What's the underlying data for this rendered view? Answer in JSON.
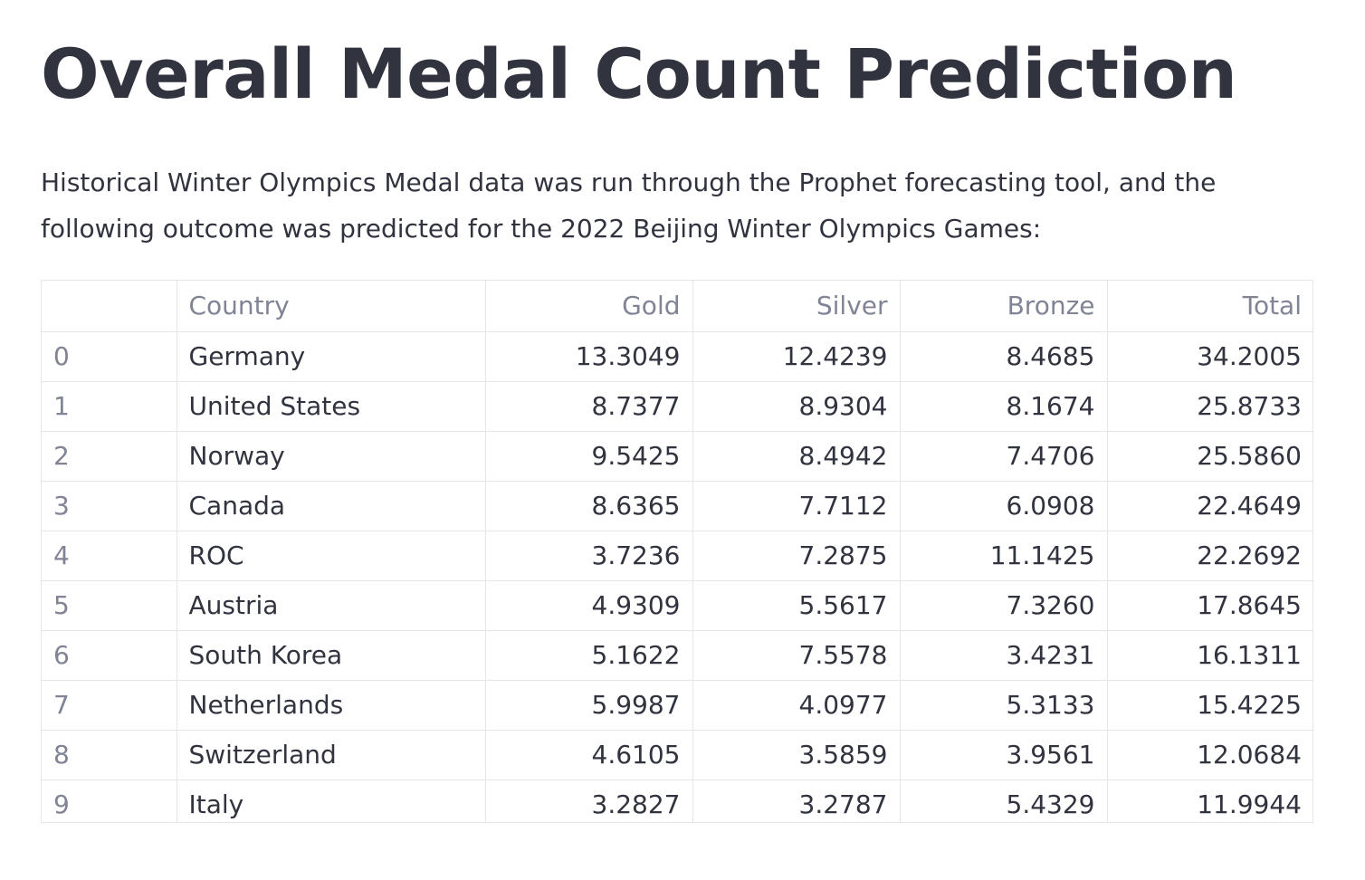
{
  "page": {
    "title": "Overall Medal Count Prediction",
    "intro": "Historical Winter Olympics Medal data was run through the Prophet forecasting tool, and the following outcome was predicted for the 2022 Beijing Winter Olympics Games:"
  },
  "table": {
    "columns": [
      "",
      "Country",
      "Gold",
      "Silver",
      "Bronze",
      "Total"
    ],
    "rows": [
      {
        "index": "0",
        "country": "Germany",
        "gold": "13.3049",
        "silver": "12.4239",
        "bronze": "8.4685",
        "total": "34.2005"
      },
      {
        "index": "1",
        "country": "United States",
        "gold": "8.7377",
        "silver": "8.9304",
        "bronze": "8.1674",
        "total": "25.8733"
      },
      {
        "index": "2",
        "country": "Norway",
        "gold": "9.5425",
        "silver": "8.4942",
        "bronze": "7.4706",
        "total": "25.5860"
      },
      {
        "index": "3",
        "country": "Canada",
        "gold": "8.6365",
        "silver": "7.7112",
        "bronze": "6.0908",
        "total": "22.4649"
      },
      {
        "index": "4",
        "country": "ROC",
        "gold": "3.7236",
        "silver": "7.2875",
        "bronze": "11.1425",
        "total": "22.2692"
      },
      {
        "index": "5",
        "country": "Austria",
        "gold": "4.9309",
        "silver": "5.5617",
        "bronze": "7.3260",
        "total": "17.8645"
      },
      {
        "index": "6",
        "country": "South Korea",
        "gold": "5.1622",
        "silver": "7.5578",
        "bronze": "3.4231",
        "total": "16.1311"
      },
      {
        "index": "7",
        "country": "Netherlands",
        "gold": "5.9987",
        "silver": "4.0977",
        "bronze": "5.3133",
        "total": "15.4225"
      },
      {
        "index": "8",
        "country": "Switzerland",
        "gold": "4.6105",
        "silver": "3.5859",
        "bronze": "3.9561",
        "total": "12.0684"
      },
      {
        "index": "9",
        "country": "Italy",
        "gold": "3.2827",
        "silver": "3.2787",
        "bronze": "5.4329",
        "total": "11.9944"
      }
    ]
  }
}
